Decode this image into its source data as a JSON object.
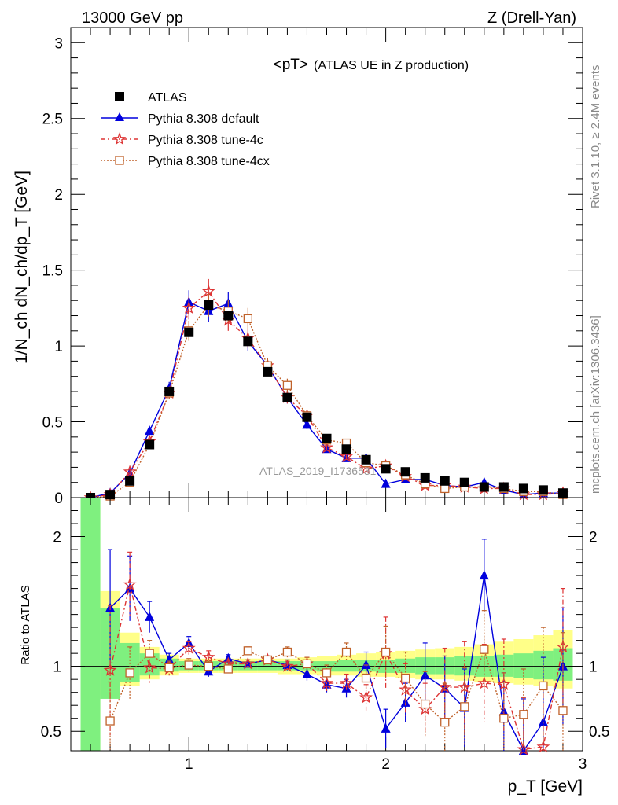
{
  "header": {
    "left": "13000 GeV pp",
    "right": "Z (Drell-Yan)"
  },
  "side_labels": {
    "top": "Rivet 3.1.10, ≥ 2.4M events",
    "bottom": "mcplots.cern.ch [arXiv:1306.3436]"
  },
  "colors": {
    "atlas": "#000000",
    "default": "#0000dd",
    "tune4c": "#dd3333",
    "tune4cx": "#c0622b",
    "band_inner": "#7ff07f",
    "band_outer": "#ffff88"
  },
  "chart_data": [
    {
      "type": "line",
      "title": "<pT>",
      "subtitle": "(ATLAS UE in Z production)",
      "watermark": "ATLAS_2019_I1736531",
      "xlabel": "p_T [GeV]",
      "ylabel": "1/N_ch dN_ch/dp_T [GeV]",
      "xlim": [
        0.4,
        3.0
      ],
      "ylim": [
        0,
        3.1
      ],
      "yticks": [
        0,
        0.5,
        1,
        1.5,
        2,
        2.5,
        3
      ],
      "ytick_labels": [
        "0",
        "0.5",
        "1",
        "1.5",
        "2",
        "2.5",
        "3"
      ],
      "legend": {
        "position": "top-left",
        "entries": [
          "ATLAS",
          "Pythia 8.308 default",
          "Pythia 8.308 tune-4c",
          "Pythia 8.308 tune-4cx"
        ]
      },
      "x": [
        0.5,
        0.6,
        0.7,
        0.8,
        0.9,
        1.0,
        1.1,
        1.2,
        1.3,
        1.4,
        1.5,
        1.6,
        1.7,
        1.8,
        1.9,
        2.0,
        2.1,
        2.2,
        2.3,
        2.4,
        2.5,
        2.6,
        2.7,
        2.8,
        2.9
      ],
      "series": [
        {
          "name": "ATLAS",
          "marker": "square",
          "values": [
            0.0,
            0.02,
            0.11,
            0.35,
            0.7,
            1.09,
            1.27,
            1.2,
            1.03,
            0.83,
            0.66,
            0.53,
            0.39,
            0.32,
            0.25,
            0.19,
            0.17,
            0.13,
            0.11,
            0.1,
            0.07,
            0.07,
            0.06,
            0.05,
            0.03
          ]
        },
        {
          "name": "Pythia 8.308 default",
          "marker": "triangle",
          "values": [
            0.0,
            0.03,
            0.16,
            0.44,
            0.72,
            1.29,
            1.23,
            1.28,
            1.03,
            0.87,
            0.66,
            0.48,
            0.32,
            0.26,
            0.26,
            0.09,
            0.12,
            0.12,
            0.08,
            0.07,
            0.1,
            0.05,
            0.02,
            0.03,
            0.03
          ]
        },
        {
          "name": "Pythia 8.308 tune-4c",
          "marker": "star",
          "values": [
            0.0,
            0.02,
            0.17,
            0.37,
            0.69,
            1.25,
            1.36,
            1.17,
            1.05,
            0.87,
            0.66,
            0.54,
            0.33,
            0.27,
            0.19,
            0.21,
            0.14,
            0.08,
            0.08,
            0.07,
            0.06,
            0.06,
            0.02,
            0.02,
            0.03
          ]
        },
        {
          "name": "Pythia 8.308 tune-4cx",
          "marker": "open-square",
          "values": [
            0.0,
            0.01,
            0.1,
            0.35,
            0.69,
            1.1,
            1.27,
            1.23,
            1.18,
            0.87,
            0.74,
            0.54,
            0.38,
            0.36,
            0.23,
            0.21,
            0.15,
            0.09,
            0.06,
            0.07,
            0.07,
            0.06,
            0.04,
            0.04,
            0.02
          ]
        }
      ]
    },
    {
      "type": "line",
      "ylabel": "Ratio to ATLAS",
      "xlabel": "p_T [GeV]",
      "xlim": [
        0.4,
        3.0
      ],
      "ylim": [
        0.35,
        2.3
      ],
      "reference": 1,
      "xticks": [
        1,
        2,
        3
      ],
      "xtick_labels": [
        "1",
        "2",
        "3"
      ],
      "yticks": [
        0.5,
        1,
        2
      ],
      "ytick_labels": [
        "0.5",
        "1",
        "2"
      ],
      "band_edges": [
        0.45,
        0.55,
        0.65,
        0.75,
        0.85,
        0.95,
        1.05,
        1.15,
        1.25,
        1.35,
        1.45,
        1.55,
        1.65,
        1.75,
        1.85,
        1.95,
        2.05,
        2.15,
        2.25,
        2.35,
        2.45,
        2.55,
        2.65,
        2.75,
        2.85,
        2.95
      ],
      "band_inner": [
        [
          0.35,
          2.3
        ],
        [
          0.75,
          1.45
        ],
        [
          0.88,
          1.18
        ],
        [
          0.93,
          1.1
        ],
        [
          0.96,
          1.06
        ],
        [
          0.97,
          1.04
        ],
        [
          0.97,
          1.04
        ],
        [
          0.97,
          1.04
        ],
        [
          0.97,
          1.04
        ],
        [
          0.97,
          1.04
        ],
        [
          0.97,
          1.04
        ],
        [
          0.97,
          1.04
        ],
        [
          0.96,
          1.04
        ],
        [
          0.96,
          1.05
        ],
        [
          0.96,
          1.05
        ],
        [
          0.95,
          1.05
        ],
        [
          0.95,
          1.06
        ],
        [
          0.94,
          1.07
        ],
        [
          0.94,
          1.07
        ],
        [
          0.93,
          1.08
        ],
        [
          0.92,
          1.08
        ],
        [
          0.92,
          1.09
        ],
        [
          0.91,
          1.1
        ],
        [
          0.9,
          1.12
        ],
        [
          0.89,
          1.14
        ]
      ],
      "band_outer": [
        [
          0.35,
          2.3
        ],
        [
          0.78,
          1.58
        ],
        [
          0.85,
          1.26
        ],
        [
          0.9,
          1.15
        ],
        [
          0.93,
          1.09
        ],
        [
          0.95,
          1.06
        ],
        [
          0.95,
          1.06
        ],
        [
          0.95,
          1.06
        ],
        [
          0.95,
          1.06
        ],
        [
          0.95,
          1.06
        ],
        [
          0.94,
          1.06
        ],
        [
          0.94,
          1.07
        ],
        [
          0.93,
          1.08
        ],
        [
          0.93,
          1.09
        ],
        [
          0.92,
          1.1
        ],
        [
          0.92,
          1.11
        ],
        [
          0.91,
          1.12
        ],
        [
          0.9,
          1.13
        ],
        [
          0.9,
          1.14
        ],
        [
          0.89,
          1.15
        ],
        [
          0.88,
          1.17
        ],
        [
          0.87,
          1.19
        ],
        [
          0.86,
          1.21
        ],
        [
          0.85,
          1.24
        ],
        [
          0.83,
          1.28
        ]
      ],
      "x": [
        0.6,
        0.7,
        0.8,
        0.9,
        1.0,
        1.1,
        1.2,
        1.3,
        1.4,
        1.5,
        1.6,
        1.7,
        1.8,
        1.9,
        2.0,
        2.1,
        2.2,
        2.3,
        2.4,
        2.5,
        2.6,
        2.7,
        2.8,
        2.9
      ],
      "series": [
        {
          "name": "Pythia 8.308 default",
          "values": [
            1.45,
            1.6,
            1.38,
            1.05,
            1.18,
            0.96,
            1.06,
            1.02,
            1.05,
            1.01,
            0.94,
            0.86,
            0.83,
            1.01,
            0.52,
            0.72,
            0.93,
            0.83,
            0.68,
            1.7,
            0.65,
            0.35,
            0.57,
            1.0
          ],
          "errors": [
            0.45,
            0.25,
            0.12,
            0.05,
            0.05,
            0.04,
            0.03,
            0.03,
            0.03,
            0.04,
            0.05,
            0.06,
            0.07,
            0.1,
            0.15,
            0.15,
            0.25,
            0.25,
            0.3,
            0.28,
            0.3,
            0.4,
            0.5,
            0.45
          ]
        },
        {
          "name": "Pythia 8.308 tune-4c",
          "values": [
            0.97,
            1.63,
            0.99,
            0.98,
            1.14,
            1.07,
            1.02,
            1.02,
            1.05,
            1.0,
            1.02,
            0.87,
            0.87,
            0.76,
            1.1,
            0.82,
            0.67,
            0.84,
            0.84,
            0.87,
            0.86,
            0.36,
            0.38,
            1.15
          ],
          "errors": [
            0.5,
            0.25,
            0.12,
            0.05,
            0.05,
            0.05,
            0.03,
            0.03,
            0.03,
            0.04,
            0.05,
            0.06,
            0.07,
            0.1,
            0.28,
            0.2,
            0.2,
            0.3,
            0.35,
            0.3,
            0.35,
            0.4,
            0.5,
            0.45
          ]
        },
        {
          "name": "Pythia 8.308 tune-4cx",
          "values": [
            0.58,
            0.95,
            1.1,
            0.99,
            1.01,
            1.0,
            0.98,
            1.12,
            1.05,
            1.11,
            1.02,
            0.95,
            1.11,
            0.91,
            1.11,
            0.91,
            0.71,
            0.57,
            0.69,
            1.13,
            0.6,
            0.63,
            0.85,
            0.66
          ],
          "errors": [
            0.3,
            0.2,
            0.1,
            0.05,
            0.05,
            0.04,
            0.03,
            0.03,
            0.03,
            0.04,
            0.05,
            0.06,
            0.07,
            0.1,
            0.2,
            0.2,
            0.25,
            0.3,
            0.3,
            0.3,
            0.35,
            0.35,
            0.45,
            0.6
          ]
        }
      ]
    }
  ]
}
